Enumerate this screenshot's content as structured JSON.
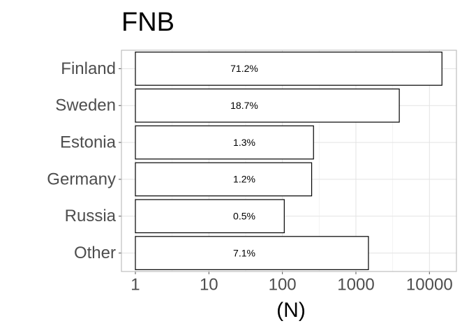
{
  "chart_data": {
    "type": "bar",
    "orientation": "horizontal",
    "title": "FNB",
    "x_label": "(N)",
    "categories": [
      "Finland",
      "Sweden",
      "Estonia",
      "Germany",
      "Russia",
      "Other"
    ],
    "values": [
      14800,
      3890,
      265,
      250,
      106,
      1480
    ],
    "percentage_labels": [
      "71.2%",
      "18.7%",
      "1.3%",
      "1.2%",
      "0.5%",
      "7.1%"
    ],
    "color": "#ffffff",
    "log_x": true,
    "xlim": [
      0.646,
      23300
    ],
    "xticks": [
      1,
      10,
      100,
      1000,
      10000
    ],
    "grid": true
  }
}
